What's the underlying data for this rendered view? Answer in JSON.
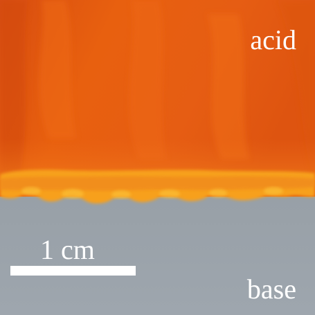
{
  "figure": {
    "upper_region_label": "acid",
    "lower_region_label": "base",
    "scale_bar_label": "1 cm"
  },
  "colors": {
    "acid_orange": "#e85e12",
    "acid_orange_dark": "#d9500f",
    "front_yellow": "#f7a21c",
    "base_gray": "#9ba3ab",
    "text_white": "#ffffff"
  }
}
